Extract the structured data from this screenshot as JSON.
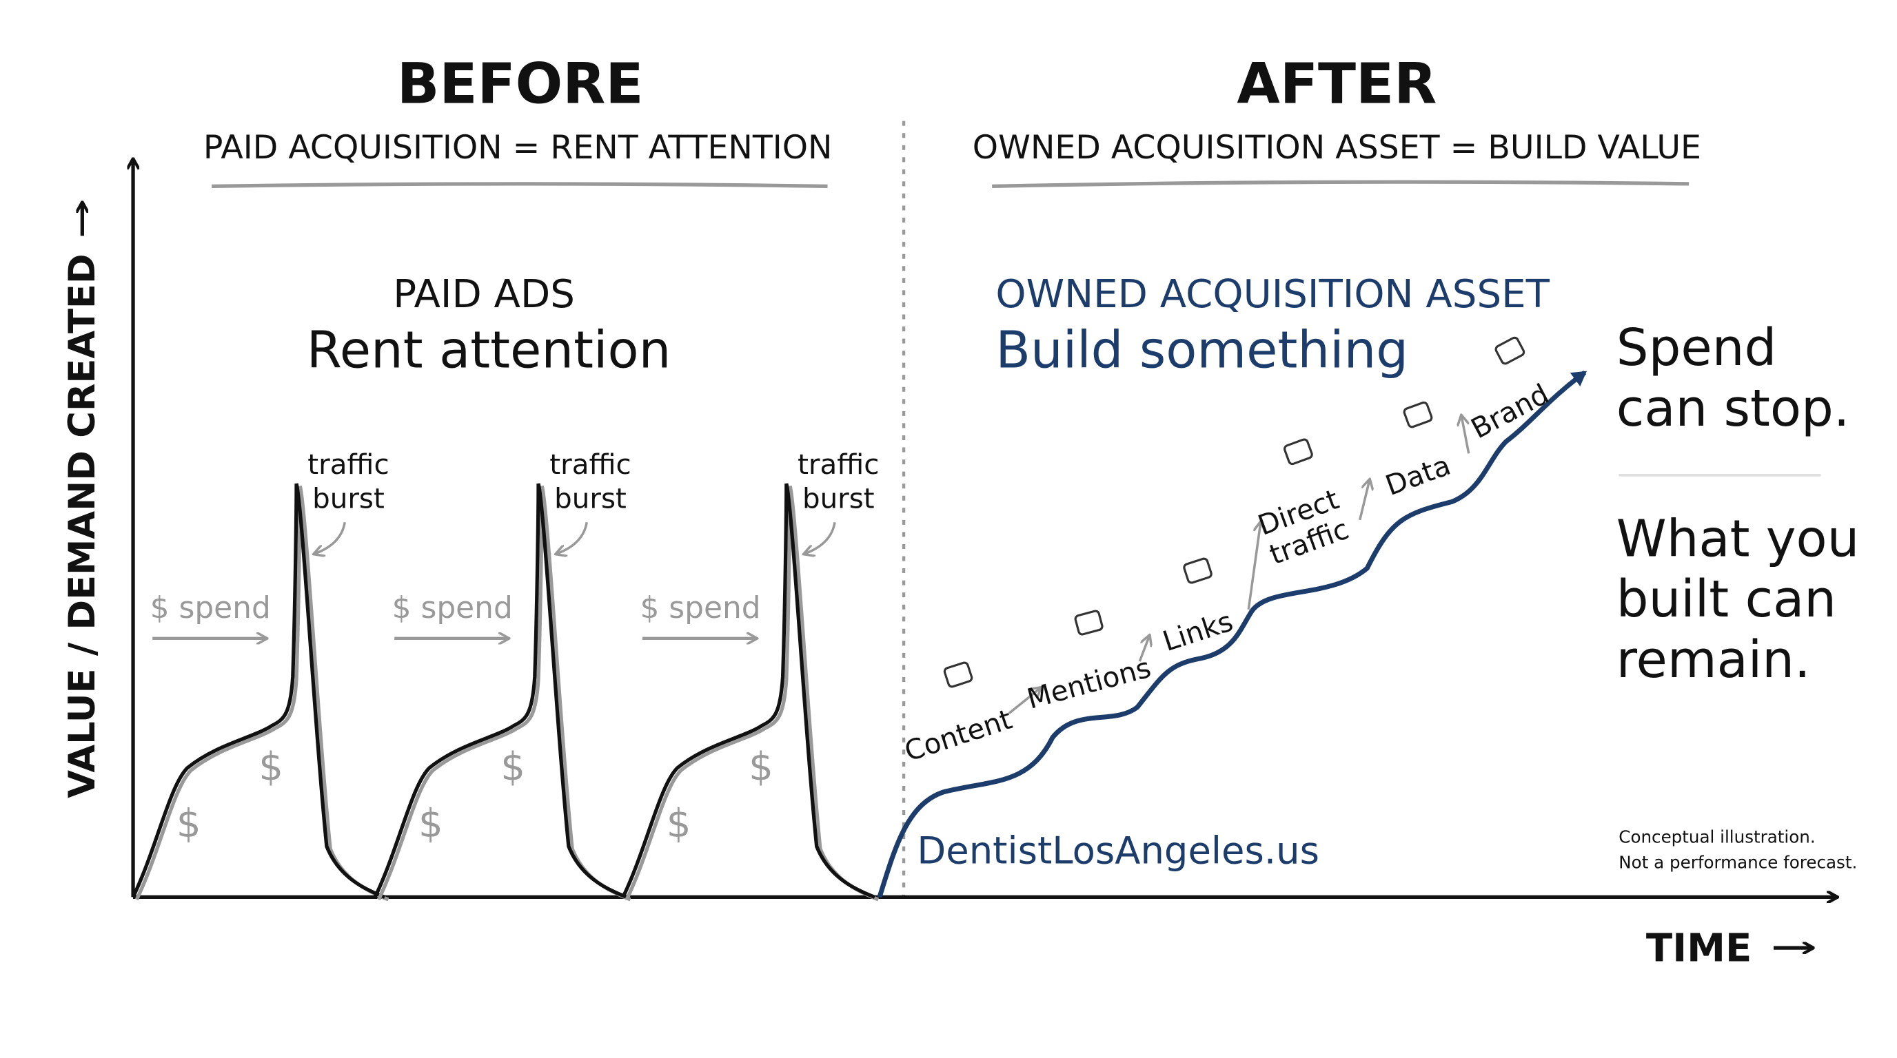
{
  "before": {
    "title": "BEFORE",
    "subtitle": "PAID ACQUISITION = RENT ATTENTION"
  },
  "after": {
    "title": "AFTER",
    "subtitle": "OWNED ACQUISITION ASSET = BUILD VALUE"
  },
  "y_axis_label": "VALUE / DEMAND CREATED",
  "x_axis_label": "TIME",
  "paid": {
    "heading": "PAID ADS",
    "subheading": "Rent attention"
  },
  "owned": {
    "heading": "OWNED ACQUISITION ASSET",
    "subheading": "Build something"
  },
  "bursts": [
    {
      "label": [
        "traffic",
        "burst"
      ],
      "spend": "$ spend",
      "dollars": [
        "$",
        "$"
      ]
    },
    {
      "label": [
        "traffic",
        "burst"
      ],
      "spend": "$ spend",
      "dollars": [
        "$",
        "$"
      ]
    },
    {
      "label": [
        "traffic",
        "burst"
      ],
      "spend": "$ spend",
      "dollars": [
        "$",
        "$"
      ]
    }
  ],
  "steps": [
    [
      "Content"
    ],
    [
      "Mentions"
    ],
    [
      "Links"
    ],
    [
      "Direct",
      "traffic"
    ],
    [
      "Data"
    ],
    [
      "Brand"
    ]
  ],
  "site": "DentistLosAngeles.us",
  "message_top": [
    "Spend",
    "can stop."
  ],
  "message_bottom": [
    "What you",
    "built can",
    "remain."
  ],
  "note": [
    "Conceptual illustration.",
    "Not a performance forecast."
  ]
}
